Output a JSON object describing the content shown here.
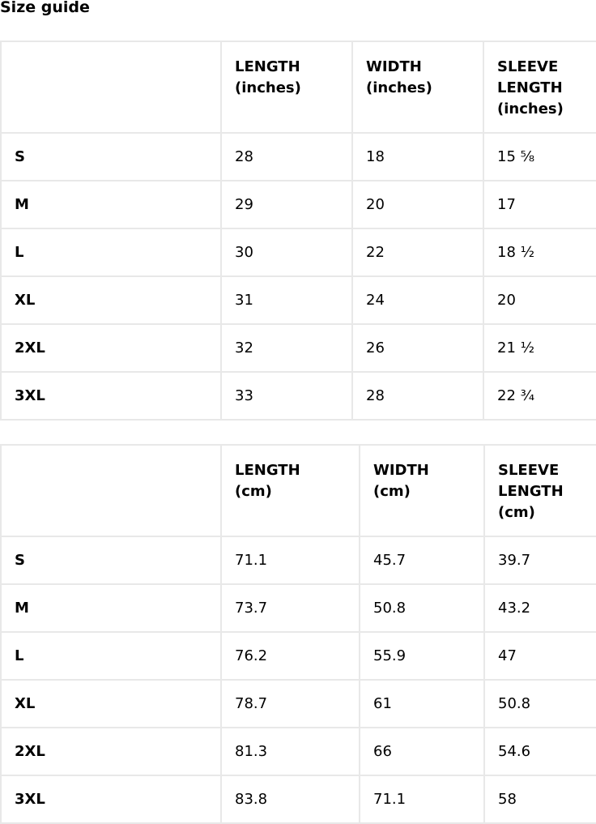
{
  "title": "Size guide",
  "tables": [
    {
      "headers": [
        "",
        "LENGTH (inches)",
        "WIDTH (inches)",
        "SLEEVE LENGTH (inches)"
      ],
      "rows": [
        [
          "S",
          "28",
          "18",
          "15 ⅝"
        ],
        [
          "M",
          "29",
          "20",
          "17"
        ],
        [
          "L",
          "30",
          "22",
          "18 ½"
        ],
        [
          "XL",
          "31",
          "24",
          "20"
        ],
        [
          "2XL",
          "32",
          "26",
          "21 ½"
        ],
        [
          "3XL",
          "33",
          "28",
          "22 ¾"
        ]
      ]
    },
    {
      "headers": [
        "",
        "LENGTH (cm)",
        "WIDTH (cm)",
        "SLEEVE LENGTH (cm)"
      ],
      "rows": [
        [
          "S",
          "71.1",
          "45.7",
          "39.7"
        ],
        [
          "M",
          "73.7",
          "50.8",
          "43.2"
        ],
        [
          "L",
          "76.2",
          "55.9",
          "47"
        ],
        [
          "XL",
          "78.7",
          "61",
          "50.8"
        ],
        [
          "2XL",
          "81.3",
          "66",
          "54.6"
        ],
        [
          "3XL",
          "83.8",
          "71.1",
          "58"
        ]
      ]
    }
  ]
}
